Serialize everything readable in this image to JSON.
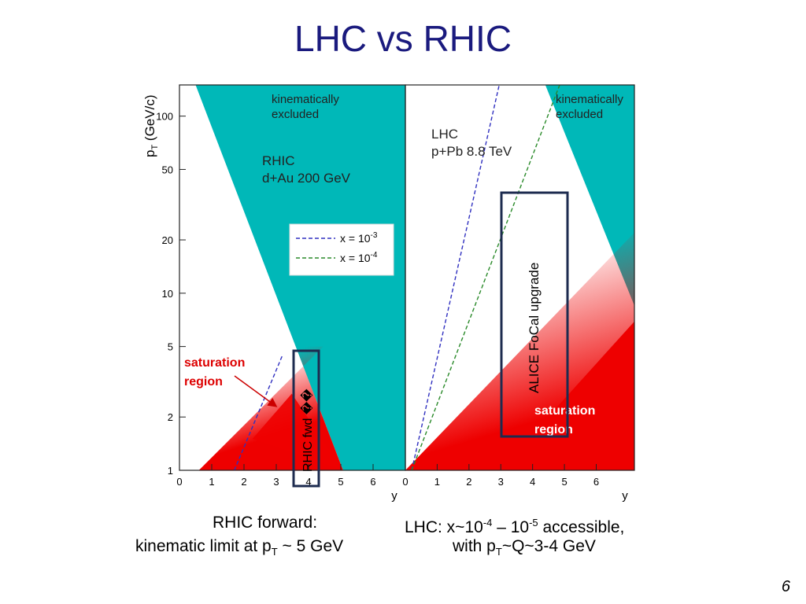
{
  "slide": {
    "title": "LHC vs RHIC",
    "page_number": "6"
  },
  "captions": {
    "left_line1": "RHIC forward:",
    "left_line2_pre": "kinematic limit at p",
    "left_line2_sub": "T",
    "left_line2_post": " ~ 5 GeV",
    "right_line1_pre": "LHC: x~10",
    "right_line1_exp1": "-4",
    "right_line1_mid": " – 10",
    "right_line1_exp2": "-5",
    "right_line1_post": " accessible,",
    "right_line2_pre": "with p",
    "right_line2_sub": "T",
    "right_line2_post": "~Q~3-4 GeV"
  },
  "overlays": {
    "rhic_box_label": "RHIC fwd ��",
    "alice_box_label": "ALICE FoCal upgrade"
  },
  "colors": {
    "excluded": "#00b8b8",
    "saturation": "#ee0000",
    "x1e3_line": "#3030c0",
    "x1e4_line": "#2a8a2a",
    "box_border": "#1d2b4f",
    "title": "#1a1a7e"
  },
  "chart_data": [
    {
      "type": "area",
      "panel": "RHIC",
      "title": "RHIC d+Au 200 GeV",
      "xlabel": "y",
      "ylabel_main": "p",
      "ylabel_sub": "T",
      "ylabel_unit": " (GeV/c)",
      "y_scale": "log",
      "xlim": [
        0,
        7.0
      ],
      "ylim": [
        1,
        150
      ],
      "x_ticks": [
        "0",
        "1",
        "2",
        "3",
        "4",
        "5",
        "6"
      ],
      "y_ticks": [
        {
          "value": 1,
          "label": "1"
        },
        {
          "value": 2,
          "label": "2"
        },
        {
          "value": 5,
          "label": "5"
        },
        {
          "value": 10,
          "label": "10"
        },
        {
          "value": 20,
          "label": "20"
        },
        {
          "value": 50,
          "label": "50"
        },
        {
          "value": 100,
          "label": "100"
        }
      ],
      "regions": {
        "kinematic_limit": [
          {
            "x": 0.5,
            "y": 150
          },
          {
            "x": 5.07,
            "y": 1
          }
        ],
        "excluded_label": [
          "kinematically",
          "excluded"
        ],
        "saturation_label": [
          "saturation",
          "region"
        ]
      },
      "series": [
        {
          "name": "x = 10",
          "name_exp": "-3",
          "points": [
            {
              "x": 1.7,
              "y": 1
            },
            {
              "x": 3.2,
              "y": 4.5
            }
          ]
        },
        {
          "name": "x = 10",
          "name_exp": "-4",
          "points": []
        }
      ],
      "saturation_edge": [
        {
          "x": 0.6,
          "y": 1
        },
        {
          "x": 4.45,
          "y": 5
        }
      ]
    },
    {
      "type": "area",
      "panel": "LHC",
      "title": "LHC",
      "subtitle": "p+Pb 8.8 TeV",
      "xlabel": "y",
      "y_scale": "log",
      "xlim": [
        0,
        7.2
      ],
      "ylim": [
        1,
        150
      ],
      "x_ticks": [
        "0",
        "1",
        "2",
        "3",
        "4",
        "5",
        "6"
      ],
      "regions": {
        "kinematic_limit": [
          {
            "x": 4.4,
            "y": 150
          },
          {
            "x": 7.2,
            "y": 8.5
          }
        ],
        "excluded_label": [
          "kinematically",
          "excluded"
        ],
        "saturation_label": [
          "saturation",
          "region"
        ]
      },
      "series": [
        {
          "name": "x = 10",
          "name_exp": "-3",
          "points": [
            {
              "x": 0.2,
              "y": 1
            },
            {
              "x": 2.95,
              "y": 150
            }
          ]
        },
        {
          "name": "x = 10",
          "name_exp": "-4",
          "points": [
            {
              "x": 0.2,
              "y": 1
            },
            {
              "x": 4.85,
              "y": 150
            }
          ]
        }
      ],
      "saturation_edge": [
        {
          "x": 0,
          "y": 1
        },
        {
          "x": 7.2,
          "y": 22
        }
      ]
    }
  ]
}
